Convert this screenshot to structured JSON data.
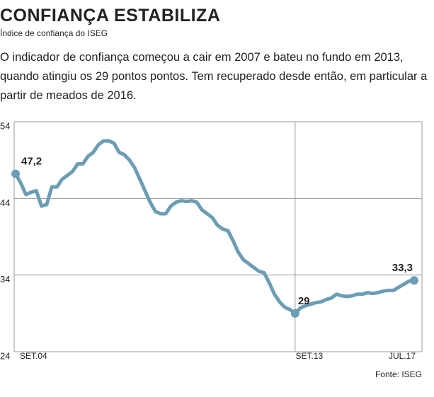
{
  "chart_data": {
    "type": "line",
    "title": "CONFIANÇA ESTABILIZA",
    "subtitle": "Índice de confiança do ISEG",
    "description": "O indicador de confiança começou a cair em 2007 e bateu no fundo em 2013, quando atingiu os 29 pontos pontos. Tem recuperado desde então, em particular a partir de meados de 2016.",
    "source": "Fonte: ISEG",
    "color": "#6b9db5",
    "categories": [
      "SET.04",
      null,
      null,
      null,
      null,
      null,
      null,
      null,
      null,
      null,
      null,
      null,
      null,
      null,
      null,
      null,
      null,
      null,
      null,
      null,
      null,
      null,
      null,
      null,
      null,
      null,
      null,
      null,
      null,
      null,
      null,
      null,
      null,
      null,
      null,
      null,
      null,
      null,
      null,
      null,
      null,
      null,
      null,
      null,
      null,
      null,
      null,
      null,
      null,
      null,
      null,
      null,
      null,
      null,
      "SET.13",
      null,
      null,
      null,
      null,
      null,
      null,
      null,
      null,
      null,
      null,
      null,
      null,
      null,
      null,
      null,
      null,
      null,
      null,
      null,
      null,
      null,
      null,
      "JUL.17"
    ],
    "values": [
      47.2,
      46,
      44.5,
      44.8,
      45,
      43,
      43.2,
      45.5,
      45.5,
      46.5,
      47,
      47.5,
      48.5,
      48.5,
      49.5,
      50,
      51,
      51.5,
      51.5,
      51.2,
      50,
      49.7,
      49,
      48,
      46.5,
      45,
      43.5,
      42.3,
      42,
      42,
      43,
      43.5,
      43.7,
      43.6,
      43.7,
      43.5,
      42.5,
      42,
      41.5,
      40.5,
      40,
      39.8,
      38.5,
      37,
      36,
      35.5,
      35,
      34.5,
      34.3,
      33,
      31.5,
      30.5,
      29.8,
      29.5,
      29,
      29.7,
      30,
      30.2,
      30.4,
      30.5,
      30.8,
      31,
      31.5,
      31.3,
      31.2,
      31.3,
      31.5,
      31.5,
      31.7,
      31.6,
      31.7,
      31.9,
      32,
      32,
      32.4,
      32.8,
      33.2,
      33.3
    ],
    "value_labels": [
      "47,2",
      null,
      null,
      null,
      null,
      null,
      null,
      null,
      null,
      null,
      null,
      null,
      null,
      null,
      null,
      null,
      null,
      null,
      null,
      null,
      null,
      null,
      null,
      null,
      null,
      null,
      null,
      null,
      null,
      null,
      null,
      null,
      null,
      null,
      null,
      null,
      null,
      null,
      null,
      null,
      null,
      null,
      null,
      null,
      null,
      null,
      null,
      null,
      null,
      null,
      null,
      null,
      null,
      null,
      "29",
      null,
      null,
      null,
      null,
      null,
      null,
      null,
      null,
      null,
      null,
      null,
      null,
      null,
      null,
      null,
      null,
      null,
      null,
      null,
      null,
      null,
      null,
      "33,3"
    ],
    "ylim": [
      24,
      54
    ],
    "yticks": [
      24,
      34,
      44,
      54
    ],
    "grid": true
  }
}
